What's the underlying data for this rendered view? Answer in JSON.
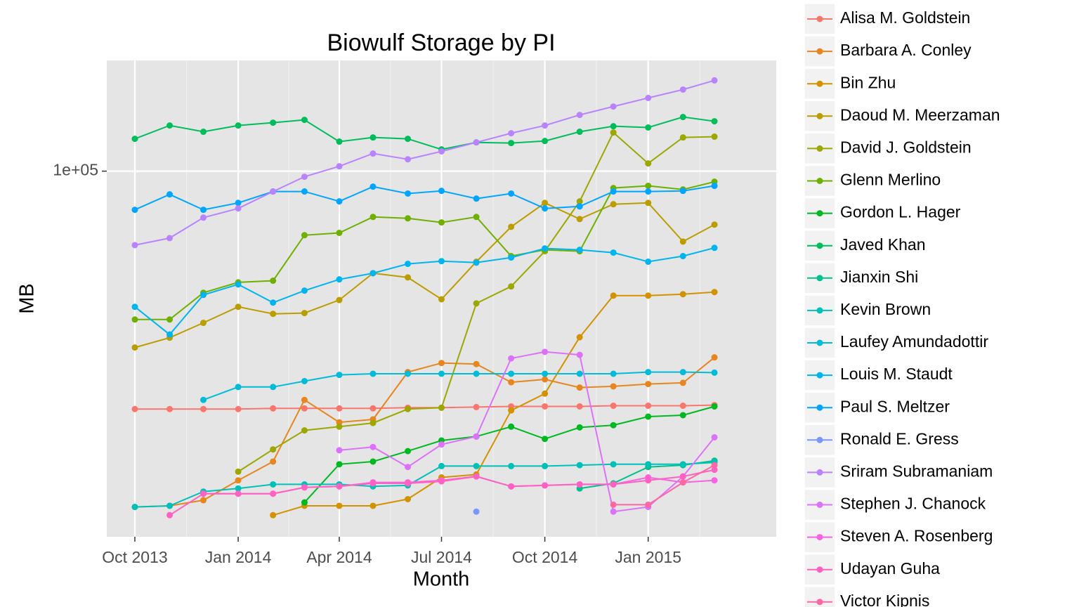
{
  "chart_data": {
    "type": "line",
    "title": "Biowulf Storage by PI",
    "x_label": "Month",
    "y_label": "MB",
    "x": [
      "2013-10",
      "2013-11",
      "2013-12",
      "2014-01",
      "2014-02",
      "2014-03",
      "2014-04",
      "2014-05",
      "2014-06",
      "2014-07",
      "2014-08",
      "2014-09",
      "2014-10",
      "2014-11",
      "2014-12",
      "2015-01",
      "2015-02",
      "2015-03"
    ],
    "xlim": [
      "2013-09-06",
      "2015-04-25"
    ],
    "xticks": [
      {
        "value": "2013-10",
        "label": "Oct 2013"
      },
      {
        "value": "2014-01",
        "label": "Jan 2014"
      },
      {
        "value": "2014-04",
        "label": "Apr 2014"
      },
      {
        "value": "2014-07",
        "label": "Jul 2014"
      },
      {
        "value": "2014-10",
        "label": "Oct 2014"
      },
      {
        "value": "2015-01",
        "label": "Jan 2015"
      }
    ],
    "ylim": [
      13600,
      183000
    ],
    "yticks": [
      {
        "value": 100000,
        "label": "1e+05"
      }
    ],
    "log_y": true,
    "grid": true,
    "legend": "right",
    "series": [
      {
        "name": "Alisa M. Goldstein",
        "color": "#F8766D",
        "values": [
          27300,
          27300,
          27300,
          27300,
          27400,
          27400,
          27400,
          27400,
          27500,
          27500,
          27600,
          27700,
          27700,
          27700,
          27800,
          27800,
          27800,
          27900
        ]
      },
      {
        "name": "Barbara A. Conley",
        "color": "#E7851E",
        "values": [
          16000,
          16100,
          16600,
          18500,
          20500,
          28700,
          25400,
          25800,
          33400,
          35100,
          34900,
          31600,
          32100,
          30700,
          30900,
          31300,
          31500,
          36200
        ]
      },
      {
        "name": "Bin Zhu",
        "color": "#D39200",
        "values": [
          null,
          null,
          null,
          null,
          15300,
          16100,
          16100,
          16100,
          16700,
          18800,
          19100,
          27100,
          29700,
          40400,
          50700,
          50700,
          51100,
          51700
        ]
      },
      {
        "name": "Daoud M. Meerzaman",
        "color": "#BB9D00",
        "values": [
          38200,
          40300,
          43700,
          47700,
          45900,
          46100,
          49500,
          57300,
          56000,
          49700,
          61000,
          73800,
          84100,
          77000,
          83500,
          84100,
          68100,
          74700
        ]
      },
      {
        "name": "David J. Goldstein",
        "color": "#9CA700",
        "values": [
          null,
          null,
          null,
          19400,
          21900,
          24300,
          24800,
          25300,
          27300,
          27500,
          48600,
          53300,
          64600,
          84800,
          123500,
          104300,
          120200,
          120700
        ]
      },
      {
        "name": "Glenn Merlino",
        "color": "#6DB000",
        "values": [
          44500,
          44500,
          51500,
          54500,
          55000,
          70500,
          71400,
          77900,
          77300,
          75600,
          77900,
          62900,
          65100,
          64600,
          91200,
          92300,
          90500,
          94400
        ]
      },
      {
        "name": "Gordon L. Hager",
        "color": "#00B81F",
        "values": [
          null,
          null,
          null,
          null,
          null,
          16400,
          20200,
          20500,
          21700,
          23000,
          23500,
          24800,
          23200,
          24700,
          25000,
          26200,
          26400,
          27700
        ]
      },
      {
        "name": "Javed Khan",
        "color": "#00BD5C",
        "values": [
          119300,
          128300,
          124000,
          128300,
          130300,
          132300,
          117500,
          120200,
          119300,
          112600,
          117000,
          116600,
          117900,
          124000,
          127800,
          126900,
          134400,
          131300
        ]
      },
      {
        "name": "Jianxin Shi",
        "color": "#00C08D",
        "values": [
          null,
          null,
          null,
          null,
          null,
          null,
          null,
          null,
          null,
          null,
          null,
          null,
          null,
          17700,
          18200,
          19900,
          20100,
          20600
        ]
      },
      {
        "name": "Kevin Brown",
        "color": "#00C0B8",
        "values": [
          16000,
          16100,
          17400,
          17700,
          18100,
          18100,
          18100,
          17900,
          18000,
          20000,
          20000,
          20000,
          20000,
          20100,
          20200,
          20200,
          20200,
          20400
        ]
      },
      {
        "name": "Laufey Amundadottir",
        "color": "#00BCD8",
        "values": [
          null,
          null,
          28700,
          30800,
          30800,
          31800,
          32900,
          33100,
          33100,
          33100,
          33100,
          33100,
          33100,
          33100,
          33100,
          33400,
          33400,
          33300
        ]
      },
      {
        "name": "Louis M. Staudt",
        "color": "#00B4EF",
        "values": [
          47700,
          41000,
          50900,
          53900,
          48800,
          52100,
          55400,
          57300,
          60300,
          61200,
          60700,
          62400,
          65600,
          65100,
          64100,
          61000,
          62900,
          65800
        ]
      },
      {
        "name": "Paul S. Meltzer",
        "color": "#00A5FF",
        "values": [
          81000,
          88100,
          81000,
          84100,
          89500,
          89500,
          84800,
          91900,
          88500,
          89800,
          86100,
          88500,
          81600,
          82500,
          89500,
          89500,
          89800,
          92300
        ]
      },
      {
        "name": "Ronald E. Gress",
        "color": "#7997FF",
        "values": [
          null,
          null,
          null,
          null,
          null,
          null,
          null,
          null,
          null,
          null,
          15600,
          null,
          null,
          null,
          null,
          null,
          null,
          null
        ]
      },
      {
        "name": "Sriram Subramaniam",
        "color": "#B983FF",
        "values": [
          66800,
          69400,
          77600,
          81600,
          89500,
          97000,
          102700,
          110100,
          106700,
          111400,
          117000,
          123000,
          128300,
          135900,
          142300,
          149100,
          156100,
          164100
        ]
      },
      {
        "name": "Stephen J. Chanock",
        "color": "#DC71FA",
        "values": [
          null,
          null,
          null,
          null,
          null,
          null,
          21800,
          22200,
          19900,
          22500,
          23500,
          36000,
          37300,
          36700,
          15600,
          16000,
          18900,
          23400
        ]
      },
      {
        "name": "Steven A. Rosenberg",
        "color": "#F763E0",
        "values": [
          null,
          null,
          17200,
          17200,
          17200,
          17800,
          17900,
          18300,
          18300,
          18500,
          18900,
          17900,
          18000,
          18100,
          18100,
          18800,
          18300,
          18500
        ]
      },
      {
        "name": "Udayan Guha",
        "color": "#FF61C3",
        "values": [
          null,
          15300,
          17200,
          17200,
          17200,
          17800,
          17900,
          18200,
          18200,
          18400,
          18900,
          17900,
          18000,
          18100,
          18100,
          18500,
          18900,
          19600
        ]
      },
      {
        "name": "Victor Kipnis",
        "color": "#FF67A4",
        "values": [
          null,
          null,
          null,
          null,
          null,
          null,
          null,
          null,
          null,
          null,
          null,
          null,
          null,
          null,
          16200,
          16200,
          18300,
          20100
        ]
      }
    ]
  }
}
